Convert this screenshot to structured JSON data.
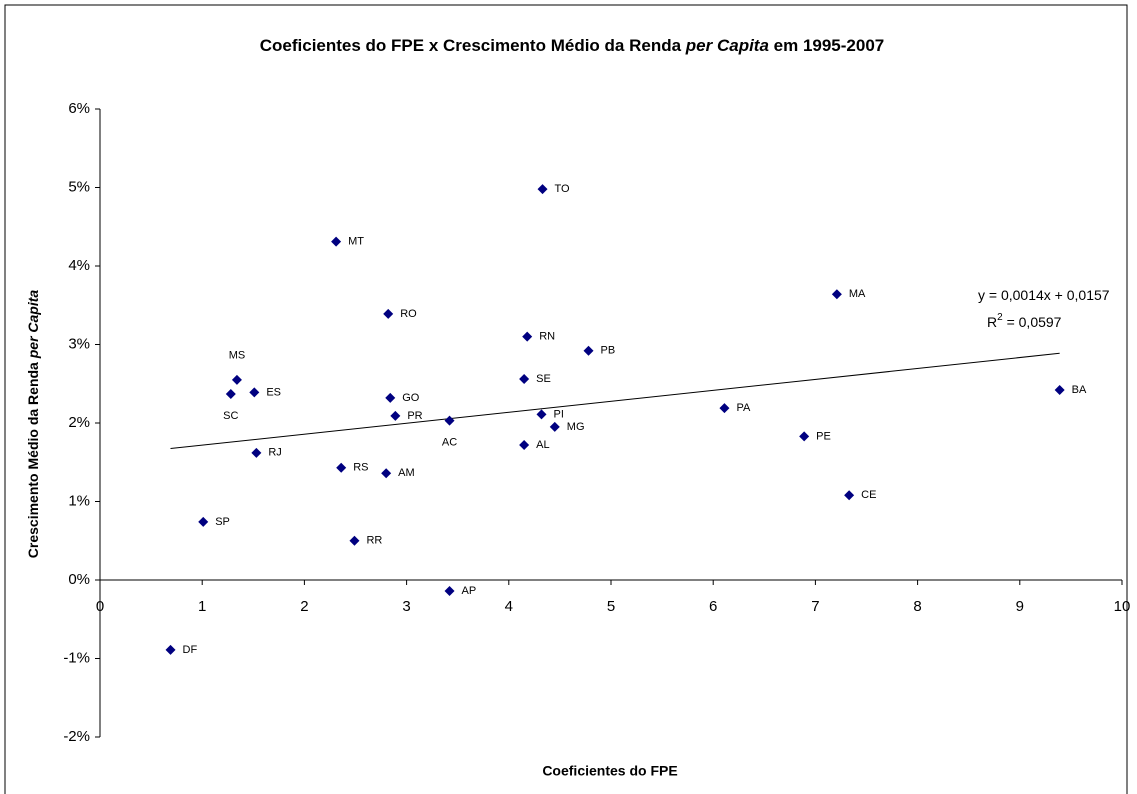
{
  "chart_data": {
    "type": "scatter",
    "title": [
      "Coeficientes do FPE x Crescimento Médio da Renda ",
      "per Capita",
      " em 1995-2007"
    ],
    "x_label": "Coeficientes do FPE",
    "y_label": [
      "Crescimento Médio da Renda ",
      "per Capita"
    ],
    "point_labels": [
      "DF",
      "SP",
      "SC",
      "MS",
      "ES",
      "RJ",
      "MT",
      "RS",
      "RR",
      "AM",
      "RO",
      "GO",
      "PR",
      "AC",
      "AP",
      "AL",
      "SE",
      "RN",
      "PI",
      "TO",
      "MG",
      "PB",
      "PA",
      "PE",
      "MA",
      "CE",
      "BA"
    ],
    "x": [
      0.69,
      1.01,
      1.28,
      1.34,
      1.51,
      1.53,
      2.31,
      2.36,
      2.49,
      2.8,
      2.82,
      2.84,
      2.89,
      3.42,
      3.42,
      4.15,
      4.15,
      4.18,
      4.32,
      4.33,
      4.45,
      4.78,
      6.11,
      6.89,
      7.21,
      7.33,
      9.39
    ],
    "values": [
      -0.89,
      0.74,
      2.37,
      2.55,
      2.39,
      1.62,
      4.31,
      1.43,
      0.5,
      1.36,
      3.39,
      2.32,
      2.09,
      2.03,
      -0.14,
      1.72,
      2.56,
      3.1,
      2.11,
      4.98,
      1.95,
      2.92,
      2.19,
      1.83,
      3.64,
      1.08,
      2.42
    ],
    "color": "#000080",
    "trendline": true,
    "trend_equation": "y = 0,0014x + 0,0157",
    "r_squared": [
      "R",
      "2",
      " = 0,0597"
    ],
    "xlim": [
      0,
      10
    ],
    "xticks": [
      0,
      1,
      2,
      3,
      4,
      5,
      6,
      7,
      8,
      9,
      10
    ],
    "ylim": [
      -2,
      6
    ],
    "yticks": [
      {
        "value": -2,
        "label": "-2%"
      },
      {
        "value": -1,
        "label": "-1%"
      },
      {
        "value": 0,
        "label": "0%"
      },
      {
        "value": 1,
        "label": "1%"
      },
      {
        "value": 2,
        "label": "2%"
      },
      {
        "value": 3,
        "label": "3%"
      },
      {
        "value": 4,
        "label": "4%"
      },
      {
        "value": 5,
        "label": "5%"
      },
      {
        "value": 6,
        "label": "6%"
      }
    ]
  }
}
